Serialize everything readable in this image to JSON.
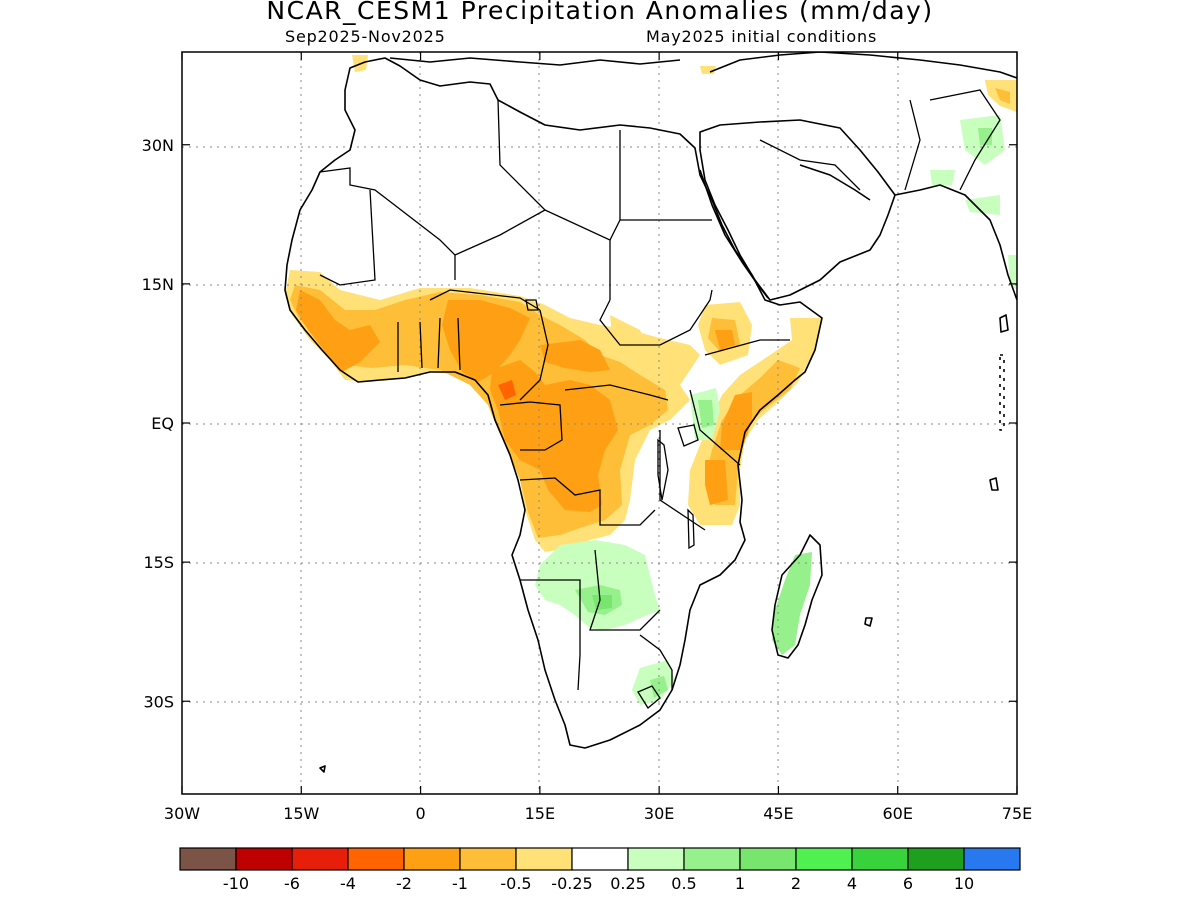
{
  "title": "NCAR_CESM1 Precipitation Anomalies (mm/day)",
  "period": "Sep2025-Nov2025",
  "initial_conditions": "May2025 initial conditions",
  "map": {
    "lon_range": [
      -30,
      75
    ],
    "lat_range": [
      -40,
      40
    ],
    "x_ticks": [
      "30W",
      "15W",
      "0",
      "15E",
      "30E",
      "45E",
      "60E",
      "75E"
    ],
    "x_tick_values": [
      -30,
      -15,
      0,
      15,
      30,
      45,
      60,
      75
    ],
    "y_ticks": [
      "30N",
      "15N",
      "EQ",
      "15S",
      "30S"
    ],
    "y_tick_values": [
      30,
      15,
      0,
      -15,
      -30
    ],
    "gridlines": "dotted"
  },
  "colorbar": {
    "colors": [
      "#7b5347",
      "#bf0000",
      "#e61e0a",
      "#ff6400",
      "#ffa014",
      "#ffbe37",
      "#ffe178",
      "#ffffff",
      "#c8ffbe",
      "#96f08c",
      "#78e66e",
      "#50f050",
      "#37d23c",
      "#1ea01e",
      "#2878f0"
    ],
    "labels": [
      "-10",
      "-6",
      "-4",
      "-2",
      "-1",
      "-0.5",
      "-0.25",
      "0.25",
      "0.5",
      "1",
      "2",
      "4",
      "6",
      "10"
    ]
  }
}
